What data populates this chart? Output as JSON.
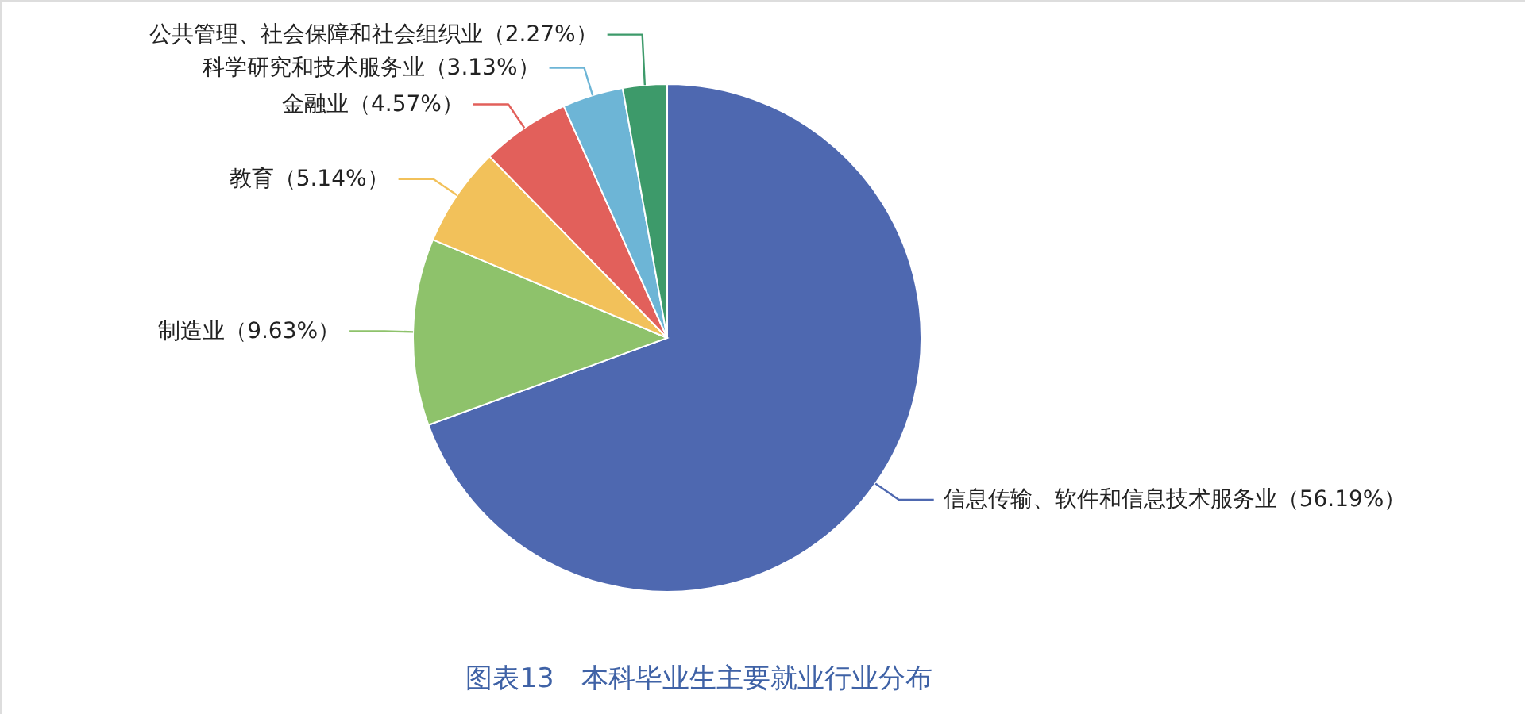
{
  "chart_data": {
    "type": "pie",
    "title": "图表13　本科毕业生主要就业行业分布",
    "categories": [
      "信息传输、软件和信息技术服务业",
      "制造业",
      "教育",
      "金融业",
      "科学研究和技术服务业",
      "公共管理、社会保障和社会组织业"
    ],
    "values": [
      56.19,
      9.63,
      5.14,
      4.57,
      3.13,
      2.27
    ],
    "value_labels": [
      "（56.19%）",
      "（9.63%）",
      "（5.14%）",
      "（4.57%）",
      "（3.13%）",
      "（2.27%）"
    ],
    "colors": [
      "#4e68b0",
      "#8ec26b",
      "#f2c15a",
      "#e2605b",
      "#6db5d6",
      "#3d9a6a"
    ]
  }
}
